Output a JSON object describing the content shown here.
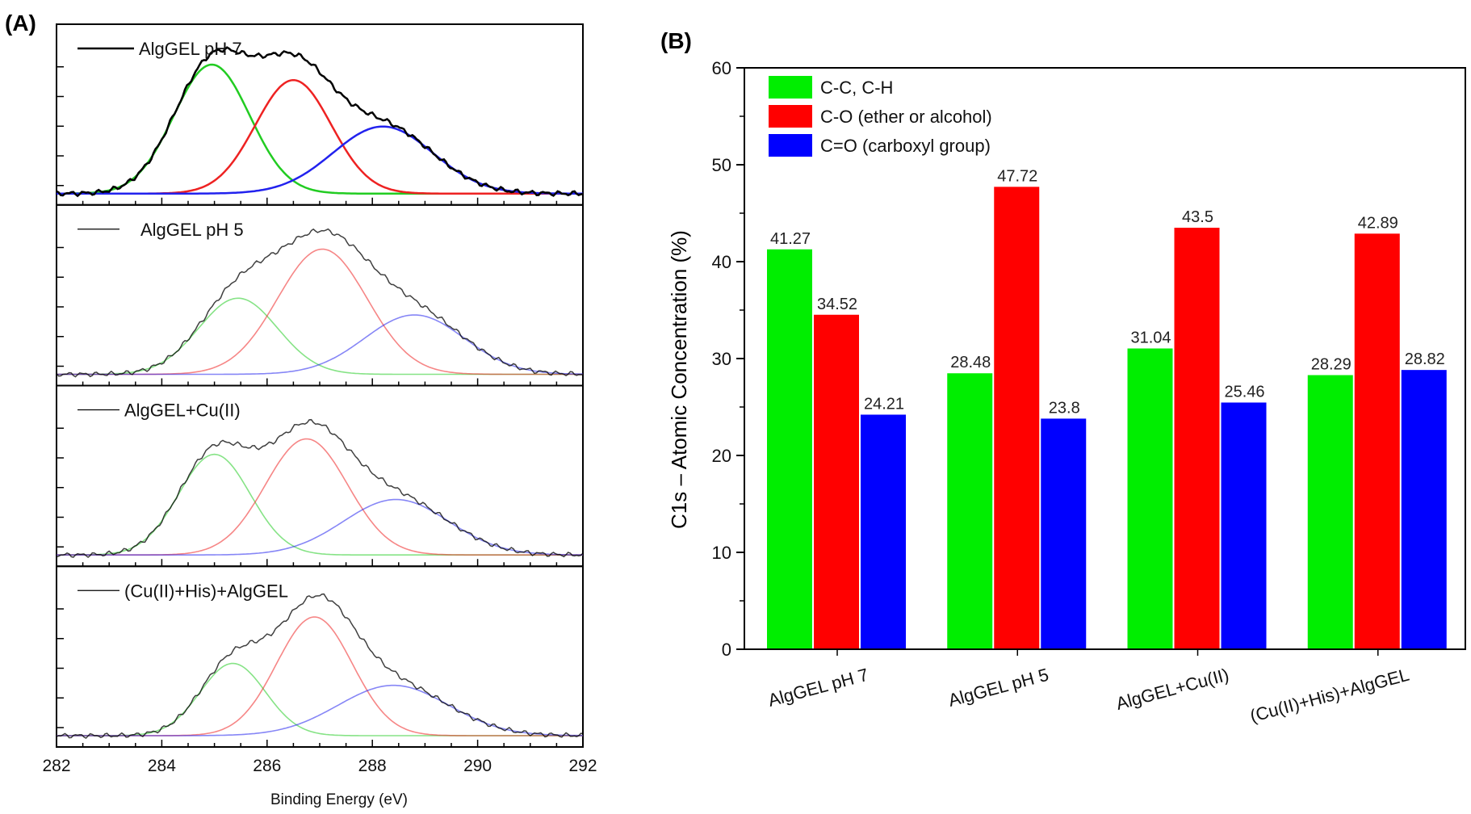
{
  "chart_data": [
    {
      "panel_label": "(A)",
      "type": "line",
      "xlabel": "Binding Energy (eV)",
      "xlim": [
        282,
        292
      ],
      "x_ticks": [
        "282",
        "284",
        "286",
        "288",
        "290",
        "292"
      ],
      "ylabel": "",
      "colors": {
        "envelope": "#000000",
        "cc": "#22cc22",
        "co": "#ee2222",
        "ccooh": "#2222ee"
      },
      "subplots": [
        {
          "name": "AlgGEL pH 7",
          "emphasis": true,
          "amps": [
            1.0,
            0.88,
            0.52
          ],
          "centers": [
            284.95,
            286.5,
            288.2
          ],
          "widths": [
            0.72,
            0.72,
            0.95
          ]
        },
        {
          "name": "AlgGEL pH 5",
          "emphasis": false,
          "amps": [
            0.59,
            0.97,
            0.46
          ],
          "centers": [
            285.45,
            287.05,
            288.8
          ],
          "widths": [
            0.75,
            0.85,
            0.95
          ]
        },
        {
          "name": "AlgGEL+Cu(II)",
          "emphasis": false,
          "amps": [
            0.78,
            0.9,
            0.43
          ],
          "centers": [
            285.0,
            286.75,
            288.45
          ],
          "widths": [
            0.68,
            0.78,
            1.0
          ]
        },
        {
          "name": "(Cu(II)+His)+AlgGEL",
          "emphasis": false,
          "amps": [
            0.56,
            0.92,
            0.39
          ],
          "centers": [
            285.35,
            286.9,
            288.4
          ],
          "widths": [
            0.62,
            0.72,
            1.05
          ]
        }
      ]
    },
    {
      "panel_label": "(B)",
      "type": "bar",
      "ylabel": "C1s – Atomic Concentration (%)",
      "xlabel": "",
      "ylim": [
        0,
        60
      ],
      "y_ticks": [
        "0",
        "10",
        "20",
        "30",
        "40",
        "50",
        "60"
      ],
      "categories": [
        "AlgGEL pH 7",
        "AlgGEL pH 5",
        "AlgGEL+Cu(II)",
        "(Cu(II)+His)+AlgGEL"
      ],
      "series": [
        {
          "name": "C-C, C-H",
          "color": "#00ee00",
          "values": [
            41.27,
            28.48,
            31.04,
            28.29
          ],
          "labels": [
            "41.27",
            "28.48",
            "31.04",
            "28.29"
          ]
        },
        {
          "name": "C-O  (ether or alcohol)",
          "color": "#ff0000",
          "values": [
            34.52,
            47.72,
            43.5,
            42.89
          ],
          "labels": [
            "34.52",
            "47.72",
            "43.5",
            "42.89"
          ]
        },
        {
          "name": "C=O  (carboxyl group)",
          "color": "#0000ff",
          "values": [
            24.21,
            23.8,
            25.46,
            28.82
          ],
          "labels": [
            "24.21",
            "23.8",
            "25.46",
            "28.82"
          ]
        }
      ]
    }
  ]
}
